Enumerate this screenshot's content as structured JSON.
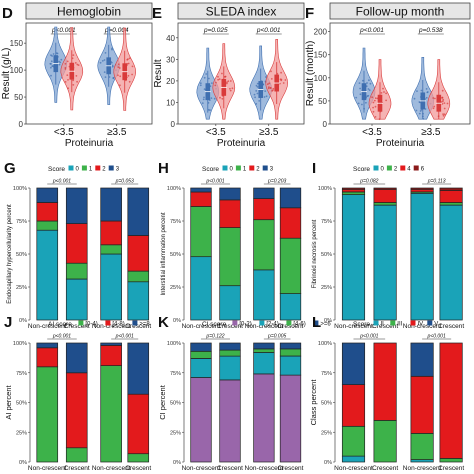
{
  "colors": {
    "blue": "#3f6fb0",
    "blue_fill": "#7fa3d1",
    "red": "#d93a3a",
    "red_fill": "#f19a9a",
    "strip_bg": "#e6e6e6",
    "cyan": "#1aa3b8",
    "green": "#3db24a",
    "red_bar": "#e31a1c",
    "navy": "#1f4e8c",
    "dark_red": "#8b1a1a",
    "purple": "#9966aa"
  },
  "chart_data": [
    {
      "type": "violin",
      "panel": "D",
      "title": "Hemoglobin",
      "ylabel": "Result (g/L)",
      "xlabel": "Proteinuria",
      "categories": [
        "<3.5",
        "≥3.5"
      ],
      "ylim": [
        0,
        180
      ],
      "yticks": [
        "0",
        "50",
        "100",
        "150"
      ],
      "p_values": [
        "p<0.001",
        "p=0.004"
      ],
      "series": [
        {
          "color": "blue",
          "medians": [
            112,
            108
          ]
        },
        {
          "color": "red",
          "medians": [
            98,
            97
          ]
        }
      ]
    },
    {
      "type": "violin",
      "panel": "E",
      "title": "SLEDA index",
      "ylabel": "Result",
      "xlabel": "Proteinuria",
      "categories": [
        "<3.5",
        "≥3.5"
      ],
      "ylim": [
        0,
        45
      ],
      "yticks": [
        "0",
        "10",
        "20",
        "30",
        "40"
      ],
      "p_values": [
        "p=0.025",
        "p<0.001"
      ],
      "series": [
        {
          "color": "blue",
          "medians": [
            15,
            16
          ]
        },
        {
          "color": "red",
          "medians": [
            17,
            19
          ]
        }
      ]
    },
    {
      "type": "violin",
      "panel": "F",
      "title": "Follow-up month",
      "ylabel": "Result (month)",
      "xlabel": "Proteinuria",
      "categories": [
        "<3.5",
        "≥3.5"
      ],
      "ylim": [
        0,
        210
      ],
      "yticks": [
        "0",
        "50",
        "100",
        "150",
        "200"
      ],
      "p_values": [
        "p<0.001",
        "p=0.538"
      ],
      "series": [
        {
          "color": "blue",
          "medians": [
            70,
            50
          ]
        },
        {
          "color": "red",
          "medians": [
            45,
            45
          ]
        }
      ]
    },
    {
      "type": "bar",
      "stacked": true,
      "panel": "G",
      "ylabel": "Endocapillary hypercellularity percent",
      "legend_title": "Score",
      "legend": [
        "0",
        "1",
        "2",
        "3"
      ],
      "legend_colors": [
        "cyan",
        "green",
        "red_bar",
        "navy"
      ],
      "categories": [
        "Non-crescent",
        "Crescent",
        "Non-crescent",
        "Crescent"
      ],
      "p_values": [
        "p<0.001",
        "p=0.053"
      ],
      "yticks": [
        "0%",
        "25%",
        "50%",
        "75%",
        "100%"
      ],
      "bars": [
        [
          68,
          7,
          14,
          11
        ],
        [
          31,
          12,
          30,
          27
        ],
        [
          50,
          7,
          18,
          25
        ],
        [
          29,
          8,
          27,
          36
        ]
      ]
    },
    {
      "type": "bar",
      "stacked": true,
      "panel": "H",
      "ylabel": "Interstitial inflammation percent",
      "legend_title": "Score",
      "legend": [
        "0",
        "1",
        "2",
        "3"
      ],
      "legend_colors": [
        "cyan",
        "green",
        "red_bar",
        "navy"
      ],
      "categories": [
        "Non-crescent",
        "Crescent",
        "Non-crescent",
        "Crescent"
      ],
      "p_values": [
        "p<0.001",
        "p=0.203"
      ],
      "yticks": [
        "0%",
        "25%",
        "50%",
        "75%",
        "100%"
      ],
      "bars": [
        [
          48,
          38,
          11,
          3
        ],
        [
          26,
          44,
          21,
          9
        ],
        [
          38,
          38,
          16,
          8
        ],
        [
          20,
          42,
          23,
          15
        ]
      ]
    },
    {
      "type": "bar",
      "stacked": true,
      "panel": "I",
      "ylabel": "Fibrinoid necrosis percent",
      "legend_title": "Score",
      "legend": [
        "0",
        "2",
        "4",
        "6"
      ],
      "legend_colors": [
        "cyan",
        "green",
        "red_bar",
        "dark_red"
      ],
      "categories": [
        "Non-crescent",
        "Crescent",
        "Non-crescent",
        "Crescent"
      ],
      "p_values": [
        "p=0.082",
        "p=0.113"
      ],
      "yticks": [
        "0%",
        "25%",
        "50%",
        "75%",
        "100%"
      ],
      "bars": [
        [
          95,
          2,
          2,
          1
        ],
        [
          87,
          2,
          10,
          1
        ],
        [
          96,
          1,
          2,
          1
        ],
        [
          87,
          2,
          9,
          2
        ]
      ]
    },
    {
      "type": "bar",
      "stacked": true,
      "panel": "J",
      "ylabel": "AI percent",
      "legend_title": "AI score",
      "legend": [
        "[0-4)",
        "[4-8)",
        ">=8"
      ],
      "legend_colors": [
        "green",
        "red_bar",
        "navy"
      ],
      "categories": [
        "Non-crescent",
        "Crescent",
        "Non-crescent",
        "Crescent"
      ],
      "p_values": [
        "p<0.001",
        "p<0.001"
      ],
      "yticks": [
        "0%",
        "25%",
        "50%",
        "75%",
        "100%"
      ],
      "bars": [
        [
          80,
          16,
          4
        ],
        [
          12,
          63,
          25
        ],
        [
          81,
          17,
          2
        ],
        [
          7,
          50,
          43
        ]
      ]
    },
    {
      "type": "bar",
      "stacked": true,
      "panel": "K",
      "ylabel": "CI percent",
      "legend_title": "CI score",
      "legend": [
        "[0-2)",
        "[2-4)",
        "[4-6)",
        ">=6"
      ],
      "legend_colors": [
        "purple",
        "cyan",
        "green",
        "navy"
      ],
      "categories": [
        "Non-crescent",
        "Crescent",
        "Non-crescent",
        "Crescent"
      ],
      "p_values": [
        "p=0.122",
        "p=0.005"
      ],
      "yticks": [
        "0%",
        "25%",
        "50%",
        "75%",
        "100%"
      ],
      "bars": [
        [
          71,
          16,
          6,
          7
        ],
        [
          69,
          20,
          5,
          6
        ],
        [
          74,
          18,
          3,
          5
        ],
        [
          73,
          16,
          6,
          5
        ]
      ]
    },
    {
      "type": "bar",
      "stacked": true,
      "panel": "L",
      "ylabel": "Class percent",
      "legend_title": "Score",
      "legend": [
        "II",
        "III",
        "IV",
        "V"
      ],
      "legend_colors": [
        "cyan",
        "green",
        "red_bar",
        "navy"
      ],
      "categories": [
        "Non-crescent",
        "Crescent",
        "Non-crescent",
        "Crescent"
      ],
      "p_values": [
        "p<0.001",
        "p<0.001"
      ],
      "yticks": [
        "0%",
        "25%",
        "50%",
        "75%",
        "100%"
      ],
      "bars": [
        [
          5,
          25,
          35,
          35
        ],
        [
          0,
          35,
          65,
          0
        ],
        [
          2,
          22,
          48,
          28
        ],
        [
          0,
          3,
          97,
          0
        ]
      ]
    }
  ]
}
